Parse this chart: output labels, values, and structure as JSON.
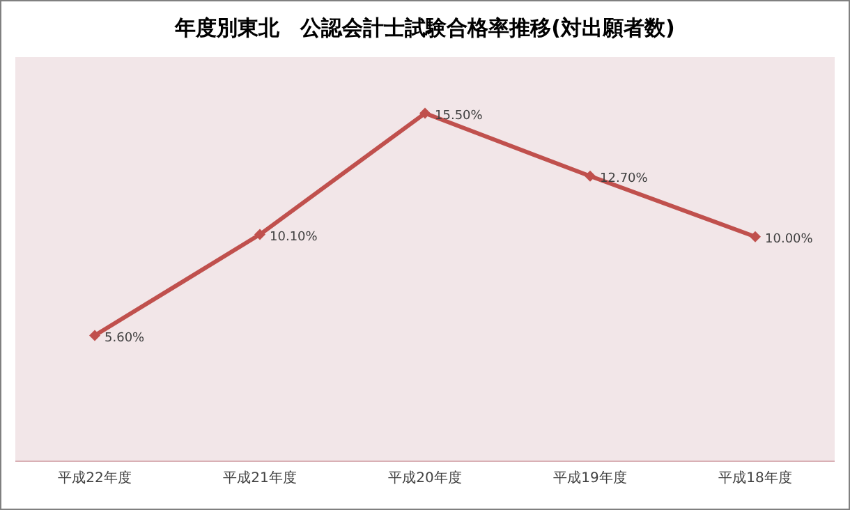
{
  "chart_data": {
    "type": "line",
    "title": "年度別東北　公認会計士試験合格率推移(対出願者数)",
    "categories": [
      "平成22年度",
      "平成21年度",
      "平成20年度",
      "平成19年度",
      "平成18年度"
    ],
    "series": [
      {
        "color": "#c0504d",
        "values": [
          5.6,
          10.1,
          15.5,
          12.7,
          10.0
        ],
        "value_labels": [
          "5.60%",
          "10.10%",
          "15.50%",
          "12.70%",
          "10.00%"
        ]
      }
    ],
    "ylim": [
      0,
      18
    ],
    "marker": "diamond",
    "line_style": "solid",
    "grid": false
  }
}
